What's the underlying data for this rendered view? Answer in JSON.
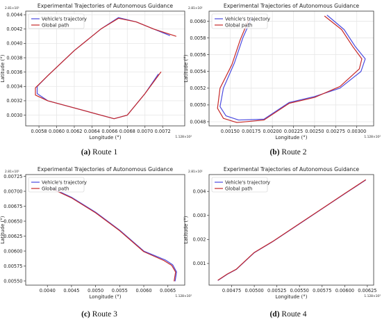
{
  "figure": {
    "captions": [
      {
        "letter": "(a)",
        "text": "Route 1"
      },
      {
        "letter": "(b)",
        "text": "Route 2"
      },
      {
        "letter": "(c)",
        "text": "Route 3"
      },
      {
        "letter": "(d)",
        "text": "Route 4"
      }
    ]
  },
  "colors": {
    "trajectory": "#4a4adf",
    "global_path": "#c62828"
  },
  "chart_data": [
    {
      "type": "line",
      "title": "Experimental Trajectories of Autonomous Guidance",
      "xlabel": "Longitude (°)",
      "ylabel": "Latitude (°)",
      "x_offset_label": "1.128×10²",
      "y_offset_label": "2.81×10¹",
      "xlim": [
        0.00565,
        0.00745
      ],
      "ylim": [
        0.00285,
        0.00445
      ],
      "xticks": [
        0.0058,
        0.006,
        0.0062,
        0.0064,
        0.0066,
        0.0068,
        0.007,
        0.0072
      ],
      "xtick_labels": [
        "0.0058",
        "0.0060",
        "0.0062",
        "0.0064",
        "0.0066",
        "0.0068",
        "0.0070",
        "0.0072"
      ],
      "yticks": [
        0.003,
        0.0032,
        0.0034,
        0.0036,
        0.0038,
        0.004,
        0.0042,
        0.0044
      ],
      "ytick_labels": [
        "0.0030",
        "0.0032",
        "0.0034",
        "0.0036",
        "0.0038",
        "0.0040",
        "0.0042",
        "0.0044"
      ],
      "grid": true,
      "legend": "top-left",
      "series": [
        {
          "name": "Vehicle's trajectory",
          "x": [
            0.00728,
            0.0071,
            0.0069,
            0.0067,
            0.0065,
            0.0062,
            0.0059,
            0.00578,
            0.00578,
            0.0059,
            0.0062,
            0.0065,
            0.00665,
            0.0068,
            0.007,
            0.00715
          ],
          "y": [
            0.00411,
            0.0042,
            0.0043,
            0.00436,
            0.0042,
            0.0039,
            0.00355,
            0.0034,
            0.0033,
            0.0032,
            0.0031,
            0.003,
            0.00295,
            0.003,
            0.0033,
            0.00357
          ]
        },
        {
          "name": "Global path",
          "x": [
            0.00735,
            0.0071,
            0.0069,
            0.0067,
            0.0065,
            0.0062,
            0.0059,
            0.00576,
            0.00576,
            0.0059,
            0.0062,
            0.0065,
            0.00665,
            0.0068,
            0.007,
            0.00718
          ],
          "y": [
            0.0041,
            0.0042,
            0.0043,
            0.00435,
            0.0042,
            0.0039,
            0.00355,
            0.00338,
            0.00328,
            0.0032,
            0.0031,
            0.003,
            0.00295,
            0.003,
            0.0033,
            0.0036
          ]
        }
      ]
    },
    {
      "type": "line",
      "title": "Experimental Trajectories of Autonomous Guidance",
      "xlabel": "Longitude (°)",
      "ylabel": "Latitude (°)",
      "x_offset_label": "1.128×10²",
      "y_offset_label": "2.81×10¹",
      "xlim": [
        0.00125,
        0.0032
      ],
      "ylim": [
        0.00475,
        0.00612
      ],
      "xticks": [
        0.0015,
        0.00175,
        0.002,
        0.00225,
        0.0025,
        0.00275,
        0.003
      ],
      "xtick_labels": [
        "0.00150",
        "0.00175",
        "0.00200",
        "0.00225",
        "0.00250",
        "0.00275",
        "0.00300"
      ],
      "yticks": [
        0.0048,
        0.005,
        0.0052,
        0.0054,
        0.0056,
        0.0058,
        0.006
      ],
      "ytick_labels": [
        "0.0048",
        "0.0050",
        "0.0052",
        "0.0054",
        "0.0056",
        "0.0058",
        "0.0060"
      ],
      "grid": true,
      "legend": "top-left",
      "series": [
        {
          "name": "Vehicle's trajectory",
          "x": [
            0.00176,
            0.00165,
            0.00155,
            0.00142,
            0.00138,
            0.00145,
            0.0016,
            0.0019,
            0.0022,
            0.0025,
            0.0028,
            0.00305,
            0.0031,
            0.00298,
            0.00285,
            0.00265
          ],
          "y": [
            0.00605,
            0.0058,
            0.0055,
            0.0052,
            0.00498,
            0.00487,
            0.00482,
            0.00483,
            0.00503,
            0.0051,
            0.0052,
            0.0054,
            0.00555,
            0.0057,
            0.0059,
            0.00607
          ]
        },
        {
          "name": "Global path",
          "x": [
            0.00172,
            0.00162,
            0.00152,
            0.00138,
            0.00135,
            0.00142,
            0.00158,
            0.0019,
            0.0022,
            0.0025,
            0.0028,
            0.00303,
            0.00306,
            0.00295,
            0.00282,
            0.00262
          ],
          "y": [
            0.00602,
            0.00578,
            0.00548,
            0.0052,
            0.00496,
            0.00484,
            0.00479,
            0.00482,
            0.00502,
            0.00509,
            0.00522,
            0.00543,
            0.00555,
            0.0057,
            0.0059,
            0.00606
          ]
        }
      ]
    },
    {
      "type": "line",
      "title": "Experimental Trajectories of Autonomous Guidance",
      "xlabel": "Longitude (°)",
      "ylabel": "Latitude (°)",
      "x_offset_label": "1.128×10²",
      "y_offset_label": "2.81×10¹",
      "xlim": [
        0.00355,
        0.00685
      ],
      "ylim": [
        0.00543,
        0.00728
      ],
      "xticks": [
        0.004,
        0.0045,
        0.005,
        0.0055,
        0.006,
        0.0065
      ],
      "xtick_labels": [
        "0.0040",
        "0.0045",
        "0.0050",
        "0.0055",
        "0.0060",
        "0.0065"
      ],
      "yticks": [
        0.0055,
        0.00575,
        0.006,
        0.00625,
        0.0065,
        0.00675,
        0.007,
        0.00725
      ],
      "ytick_labels": [
        "0.00550",
        "0.00575",
        "0.00600",
        "0.00625",
        "0.00650",
        "0.00675",
        "0.00700",
        "0.00725"
      ],
      "grid": false,
      "legend": "top-left",
      "series": [
        {
          "name": "Vehicle's trajectory",
          "x": [
            0.0041,
            0.0045,
            0.005,
            0.0055,
            0.006,
            0.00645,
            0.0066,
            0.00668,
            0.00665
          ],
          "y": [
            0.00705,
            0.0069,
            0.00665,
            0.00635,
            0.006,
            0.00585,
            0.00577,
            0.00565,
            0.0055
          ]
        },
        {
          "name": "Global path",
          "x": [
            0.0041,
            0.0045,
            0.005,
            0.0055,
            0.006,
            0.00642,
            0.00658,
            0.00666,
            0.00663
          ],
          "y": [
            0.00704,
            0.00689,
            0.00664,
            0.00634,
            0.00599,
            0.00584,
            0.00576,
            0.00565,
            0.0055
          ]
        }
      ]
    },
    {
      "type": "line",
      "title": "Experimental Trajectories of Autonomous Guidance",
      "xlabel": "Longitude (°)",
      "ylabel": "Latitude (°)",
      "x_offset_label": "1.128×10²",
      "y_offset_label": "2.81×10¹",
      "xlim": [
        0.0045,
        0.00632
      ],
      "ylim": [
        0.0001,
        0.0047
      ],
      "xticks": [
        0.00475,
        0.005,
        0.00525,
        0.0055,
        0.00575,
        0.006,
        0.00625
      ],
      "xtick_labels": [
        "0.00475",
        "0.00500",
        "0.00525",
        "0.00550",
        "0.00575",
        "0.00600",
        "0.00625"
      ],
      "yticks": [
        0.001,
        0.002,
        0.003,
        0.004
      ],
      "ytick_labels": [
        "0.001",
        "0.002",
        "0.003",
        "0.004"
      ],
      "grid": false,
      "legend": "top-left",
      "series": [
        {
          "name": "Vehicle's trajectory",
          "x": [
            0.0046,
            0.0047,
            0.0048,
            0.005,
            0.0052,
            0.0055,
            0.0058,
            0.006,
            0.00623
          ],
          "y": [
            0.0003,
            0.00055,
            0.00075,
            0.00145,
            0.0019,
            0.00265,
            0.0034,
            0.0039,
            0.00447
          ]
        },
        {
          "name": "Global path",
          "x": [
            0.0046,
            0.0047,
            0.0048,
            0.005,
            0.0052,
            0.0055,
            0.0058,
            0.006,
            0.00623
          ],
          "y": [
            0.00031,
            0.00056,
            0.00076,
            0.00146,
            0.00191,
            0.00266,
            0.00341,
            0.00391,
            0.00448
          ]
        }
      ]
    }
  ]
}
